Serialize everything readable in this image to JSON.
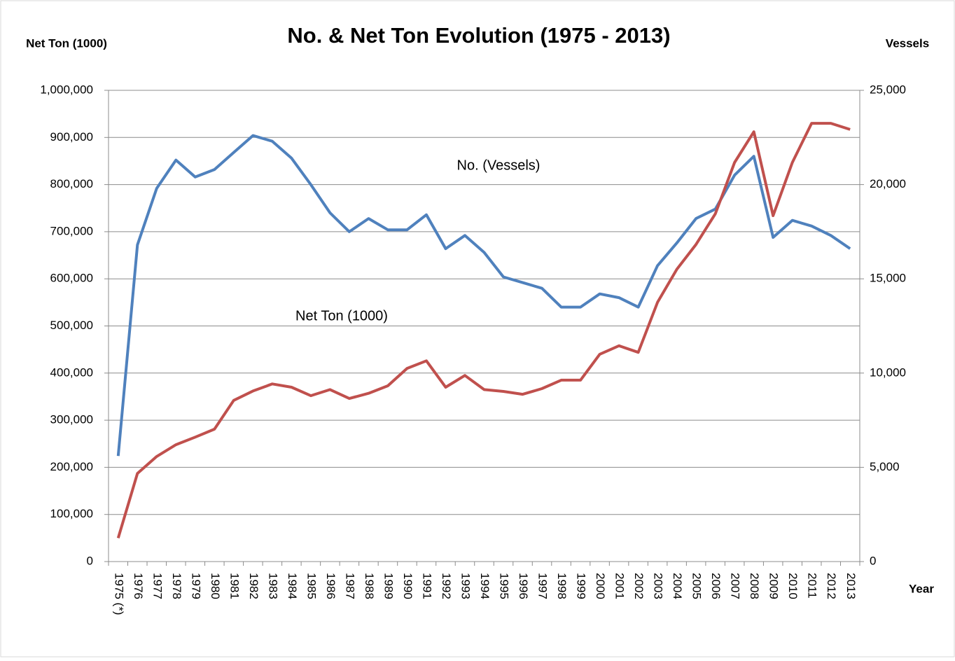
{
  "chart_data": {
    "type": "line",
    "title": "No. & Net Ton Evolution (1975 - 2013)",
    "y_label": "Net Ton (1000)",
    "y2_label": "Vessels",
    "x_label": "Year",
    "categories": [
      "1975 (*)",
      "1976",
      "1977",
      "1978",
      "1979",
      "1980",
      "1981",
      "1982",
      "1983",
      "1984",
      "1985",
      "1986",
      "1987",
      "1988",
      "1989",
      "1990",
      "1991",
      "1992",
      "1993",
      "1994",
      "1995",
      "1996",
      "1997",
      "1998",
      "1999",
      "2000",
      "2001",
      "2002",
      "2003",
      "2004",
      "2005",
      "2006",
      "2007",
      "2008",
      "2009",
      "2010",
      "2011",
      "2012",
      "2013"
    ],
    "series": [
      {
        "name": "No. (Vessels)",
        "color": "#4f81bd",
        "axis": "y2",
        "values": [
          5600,
          16800,
          19800,
          21300,
          20400,
          20800,
          21700,
          22600,
          22300,
          21400,
          20000,
          18500,
          17500,
          18200,
          17600,
          17600,
          18400,
          16600,
          17300,
          16400,
          15100,
          14800,
          14500,
          13500,
          13500,
          14200,
          14000,
          13500,
          15700,
          16900,
          18200,
          18700,
          20500,
          21500,
          17200,
          18100,
          17800,
          17300,
          16600
        ]
      },
      {
        "name": "Net Ton (1000)",
        "color": "#c0504d",
        "values": [
          50000,
          187000,
          223000,
          248000,
          264000,
          281000,
          342000,
          362000,
          377000,
          370000,
          352000,
          365000,
          346000,
          357000,
          373000,
          410000,
          426000,
          370000,
          395000,
          365000,
          361000,
          355000,
          367000,
          385000,
          385000,
          440000,
          458000,
          444000,
          550000,
          620000,
          673000,
          738000,
          847000,
          912000,
          734000,
          847000,
          930000,
          930000,
          917000
        ]
      }
    ],
    "ylim": [
      0,
      1000000
    ],
    "yticks": [
      0,
      {
        "value": 100000,
        "label": "100,000"
      },
      {
        "value": 200000,
        "label": "200,000"
      },
      {
        "value": 300000,
        "label": "300,000"
      },
      {
        "value": 400000,
        "label": "400,000"
      },
      {
        "value": 500000,
        "label": "500,000"
      },
      {
        "value": 600000,
        "label": "600,000"
      },
      {
        "value": 700000,
        "label": "700,000"
      },
      {
        "value": 800000,
        "label": "800,000"
      },
      {
        "value": 900000,
        "label": "900,000"
      },
      {
        "value": 1000000,
        "label": "1,000,000"
      }
    ],
    "y2lim": [
      0,
      25000
    ],
    "y2ticks": [
      0,
      {
        "value": 5000,
        "label": "5,000"
      },
      {
        "value": 10000,
        "label": "10,000"
      },
      {
        "value": 15000,
        "label": "15,000"
      },
      {
        "value": 20000,
        "label": "20,000"
      },
      {
        "value": 25000,
        "label": "25,000"
      }
    ],
    "grid": true
  }
}
